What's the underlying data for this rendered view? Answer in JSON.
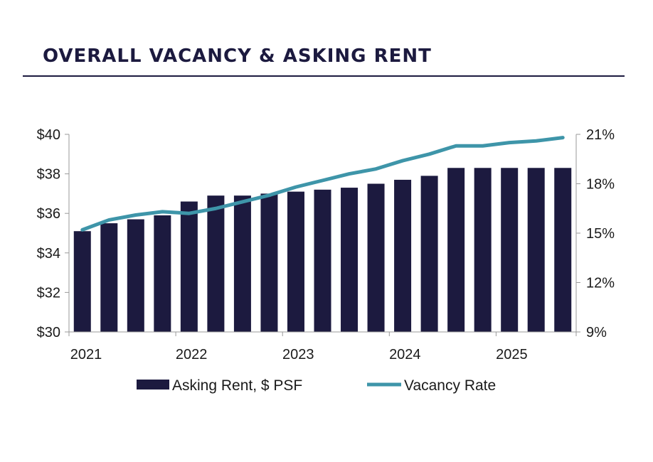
{
  "header": {
    "title": "OVERALL VACANCY & ASKING RENT"
  },
  "chart_data": {
    "type": "bar",
    "title": "OVERALL VACANCY & ASKING RENT",
    "x_tick_labels": [
      "2021",
      "2022",
      "2023",
      "2024",
      "2025"
    ],
    "series": [
      {
        "name": "Asking Rent, $ PSF",
        "type": "bar",
        "axis": "left",
        "color": "#1c1a3f",
        "values": [
          35.1,
          35.5,
          35.7,
          35.9,
          36.6,
          36.9,
          36.9,
          37.0,
          37.1,
          37.2,
          37.3,
          37.5,
          37.7,
          37.9,
          38.3,
          38.3,
          38.3,
          38.3,
          38.3
        ]
      },
      {
        "name": "Vacancy Rate",
        "type": "line",
        "axis": "right",
        "color": "#3e95a9",
        "values": [
          15.2,
          15.8,
          16.1,
          16.3,
          16.2,
          16.5,
          16.9,
          17.3,
          17.8,
          18.2,
          18.6,
          18.9,
          19.4,
          19.8,
          20.3,
          20.3,
          20.5,
          20.6,
          20.8
        ]
      }
    ],
    "y_left": {
      "min": 30,
      "max": 40,
      "ticks": [
        "$30",
        "$32",
        "$34",
        "$36",
        "$38",
        "$40"
      ]
    },
    "y_right": {
      "min": 9,
      "max": 21,
      "ticks": [
        "9%",
        "12%",
        "15%",
        "18%",
        "21%"
      ]
    },
    "grid": false,
    "legend": "bottom"
  }
}
